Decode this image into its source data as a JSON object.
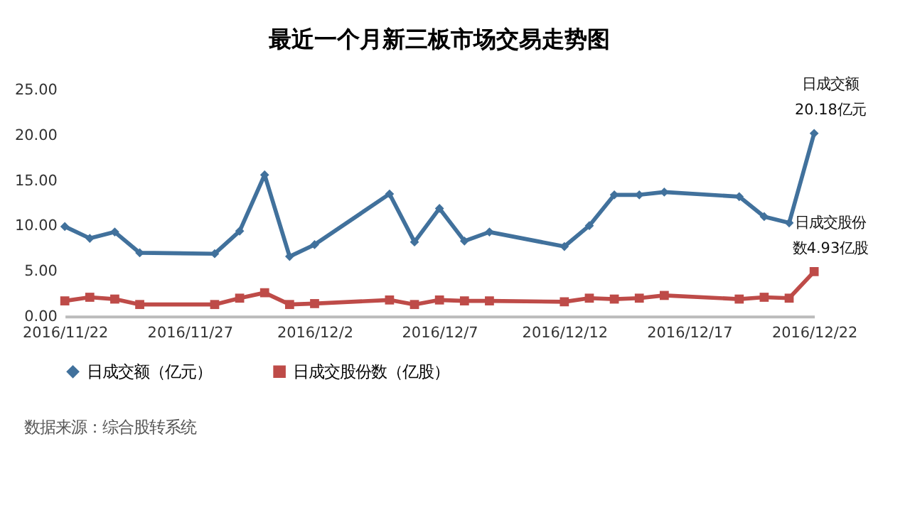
{
  "chart_data": {
    "type": "line",
    "title": "最近一个月新三板市场交易走势图",
    "x": [
      "2016-11-22",
      "2016-11-23",
      "2016-11-24",
      "2016-11-25",
      "2016-11-28",
      "2016-11-29",
      "2016-11-30",
      "2016-12-01",
      "2016-12-02",
      "2016-12-05",
      "2016-12-06",
      "2016-12-07",
      "2016-12-08",
      "2016-12-09",
      "2016-12-12",
      "2016-12-13",
      "2016-12-14",
      "2016-12-15",
      "2016-12-16",
      "2016-12-19",
      "2016-12-20",
      "2016-12-21",
      "2016-12-22"
    ],
    "series": [
      {
        "name": "日成交额（亿元）",
        "color": "#41719c",
        "marker": "diamond",
        "values": [
          9.9,
          8.6,
          9.3,
          7.0,
          6.9,
          9.4,
          15.6,
          6.6,
          7.9,
          13.5,
          8.2,
          11.9,
          8.3,
          9.3,
          7.7,
          10.0,
          13.4,
          13.4,
          13.7,
          13.2,
          11.0,
          10.3,
          20.18
        ]
      },
      {
        "name": "日成交股份数（亿股）",
        "color": "#be4b48",
        "marker": "square",
        "values": [
          1.7,
          2.1,
          1.9,
          1.3,
          1.3,
          2.0,
          2.6,
          1.3,
          1.4,
          1.8,
          1.3,
          1.8,
          1.7,
          1.7,
          1.6,
          2.0,
          1.9,
          2.0,
          2.3,
          1.9,
          2.1,
          2.0,
          4.93
        ]
      }
    ],
    "xlim": [
      "2016-11-22",
      "2016-12-22"
    ],
    "xticks": [
      {
        "value": "2016-11-22",
        "label": "2016/11/22"
      },
      {
        "value": "2016-11-27",
        "label": "2016/11/27"
      },
      {
        "value": "2016-12-02",
        "label": "2016/12/2"
      },
      {
        "value": "2016-12-07",
        "label": "2016/12/7"
      },
      {
        "value": "2016-12-12",
        "label": "2016/12/12"
      },
      {
        "value": "2016-12-17",
        "label": "2016/12/17"
      },
      {
        "value": "2016-12-22",
        "label": "2016/12/22"
      }
    ],
    "ylim": [
      0,
      25
    ],
    "yticks": [
      {
        "value": 0,
        "label": "0.00"
      },
      {
        "value": 5,
        "label": "5.00"
      },
      {
        "value": 10,
        "label": "10.00"
      },
      {
        "value": 15,
        "label": "15.00"
      },
      {
        "value": 20,
        "label": "20.00"
      },
      {
        "value": 25,
        "label": "25.00"
      }
    ],
    "grid": false,
    "legend": "bottom",
    "line_style": "solid",
    "annotations": [
      {
        "text": "日成交额",
        "x": "2016-12-22",
        "y": 20.18
      },
      {
        "text": "20.18亿元",
        "x": "2016-12-22",
        "y": 20.18
      },
      {
        "text": "日成交股份",
        "x": "2016-12-22",
        "y": 4.93
      },
      {
        "text": "数4.93亿股",
        "x": "2016-12-22",
        "y": 4.93
      },
      "数据来源：综合股转系统"
    ]
  }
}
